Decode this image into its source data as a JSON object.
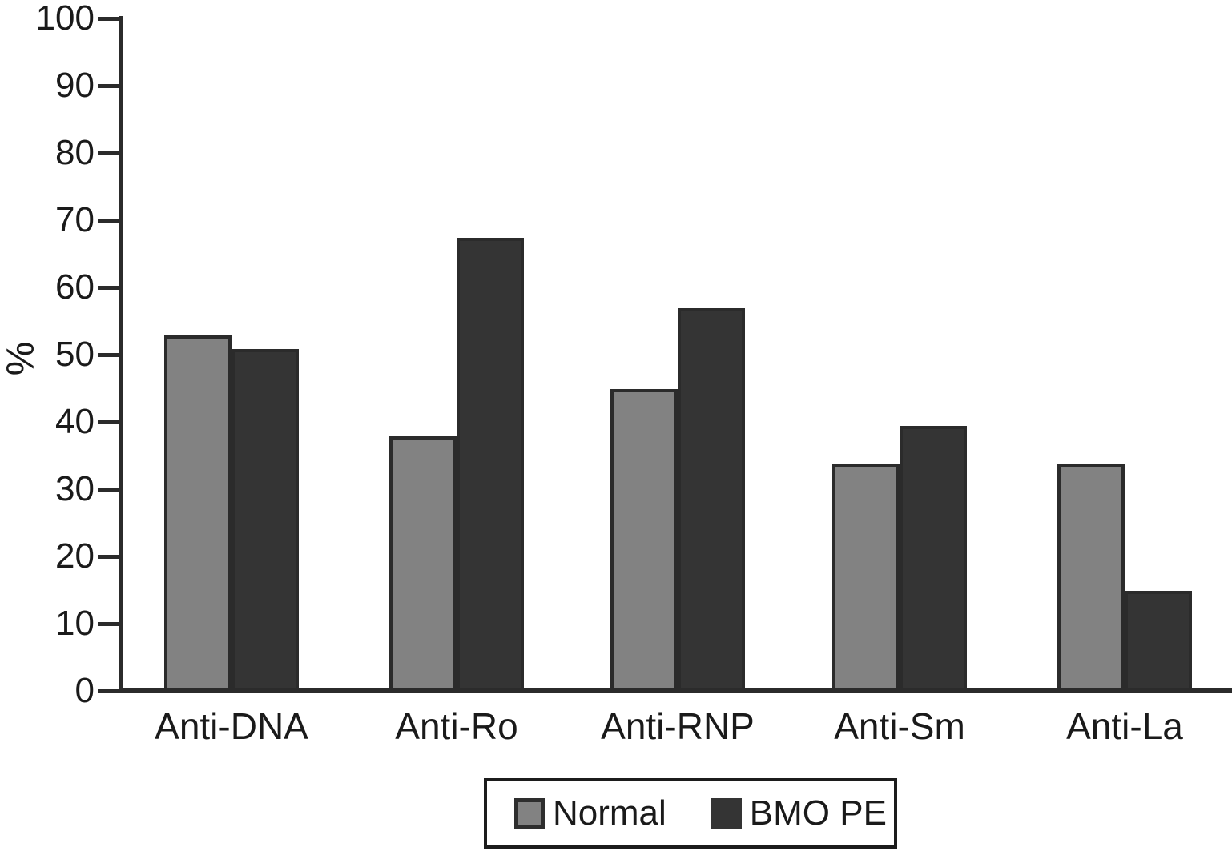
{
  "chart_data": {
    "type": "bar",
    "title": "",
    "xlabel": "",
    "ylabel": "%",
    "categories": [
      "Anti-DNA",
      "Anti-Ro",
      "Anti-RNP",
      "Anti-Sm",
      "Anti-La"
    ],
    "series": [
      {
        "name": "Normal",
        "color": "#828282",
        "values": [
          52.5,
          37.5,
          44.5,
          33.5,
          33.5
        ]
      },
      {
        "name": "BMO PE",
        "color": "#343434",
        "values": [
          50.5,
          67,
          56.5,
          39,
          14.5
        ]
      }
    ],
    "ylim": [
      0,
      100
    ],
    "yticks": [
      0,
      10,
      20,
      30,
      40,
      50,
      60,
      70,
      80,
      90,
      100
    ],
    "grid": false,
    "legend_position": "bottom"
  },
  "colors": {
    "axis": "#2b2b2b",
    "bar_outline": "#2b2b2b",
    "text": "#1a1a1a",
    "background": "#ffffff"
  }
}
